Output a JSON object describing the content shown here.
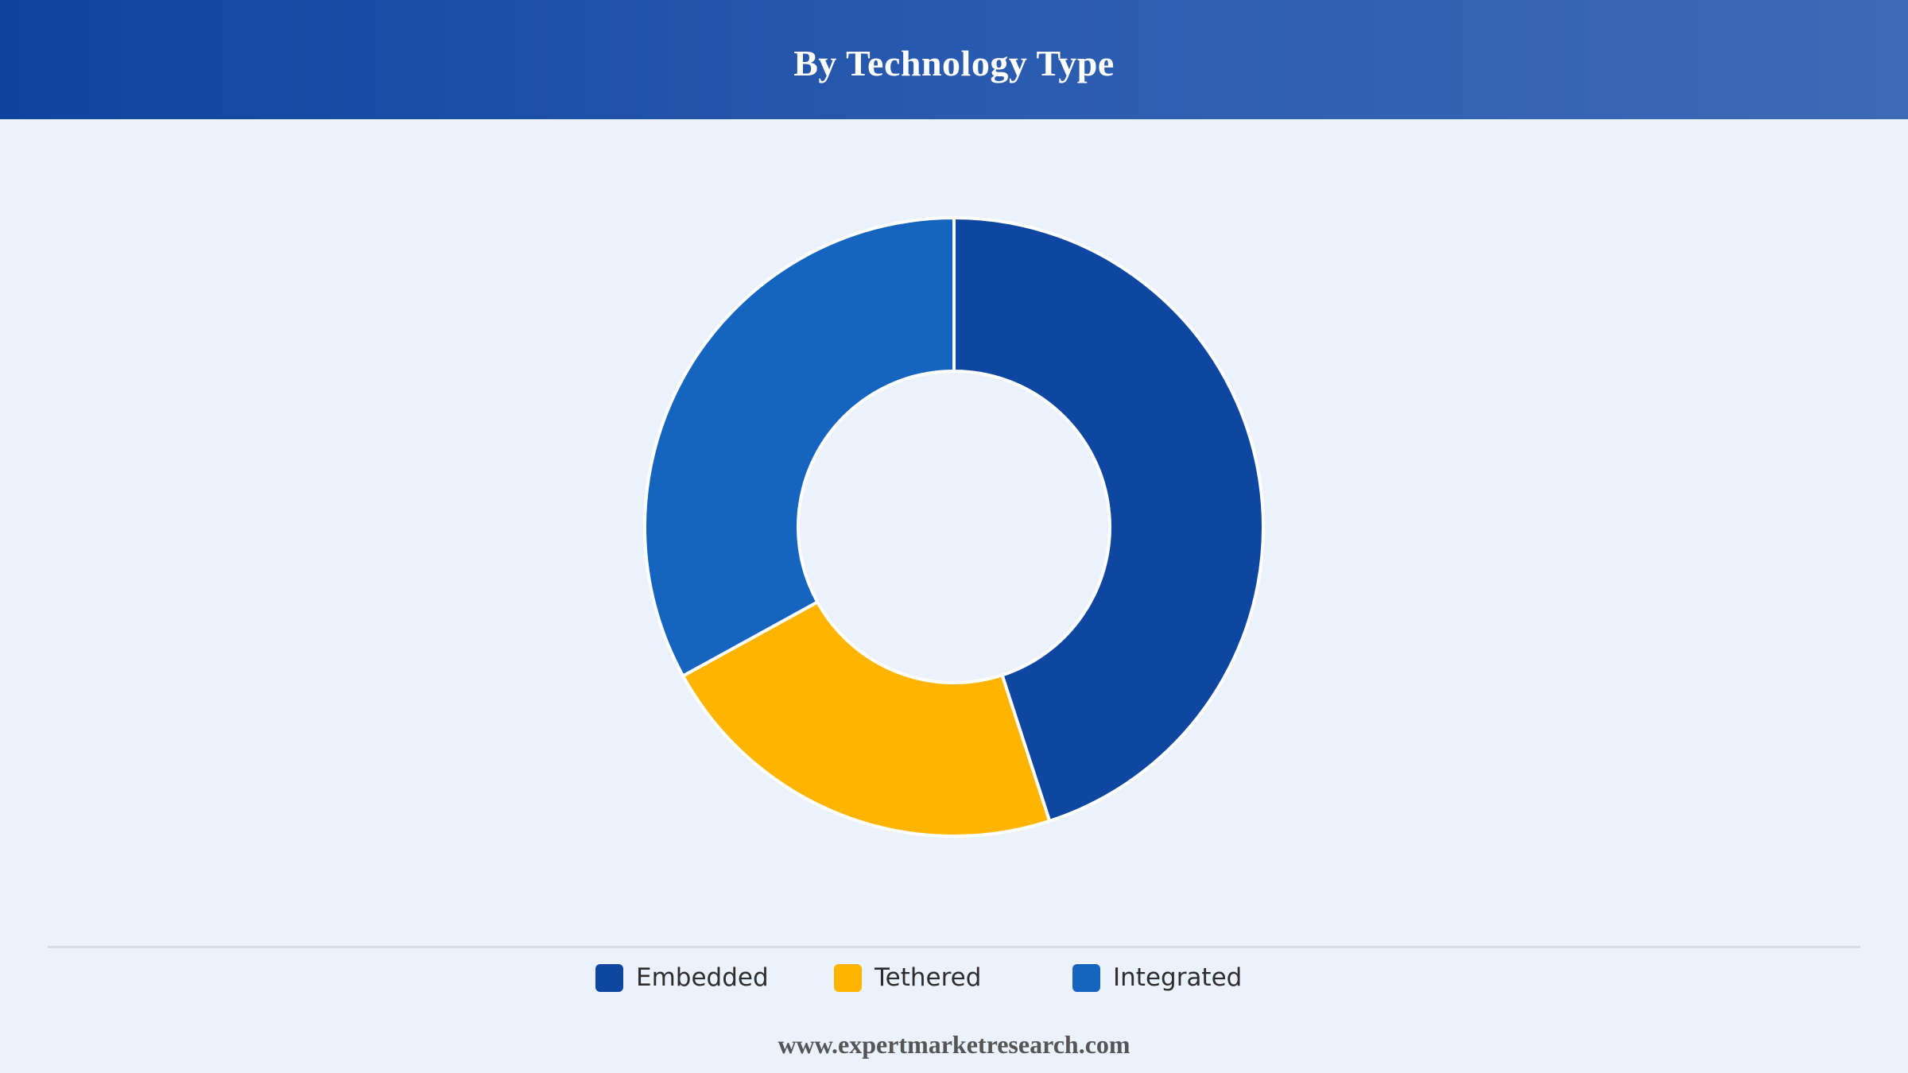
{
  "header": {
    "title": "By Technology Type"
  },
  "chart_data": {
    "type": "pie",
    "donut": true,
    "title": "By Technology Type",
    "categories": [
      "Embedded",
      "Tethered",
      "Integrated"
    ],
    "values": [
      45,
      22,
      33
    ],
    "colors": [
      "#0E46A2",
      "#FFB400",
      "#1565C0"
    ],
    "legend": "bottom",
    "legend_items": [
      {
        "label": "Embedded",
        "color": "#0E46A2"
      },
      {
        "label": "Tethered",
        "color": "#FFB400"
      },
      {
        "label": "Integrated",
        "color": "#1565C0"
      }
    ]
  },
  "colors": {
    "background": "#EBF2FC",
    "header_start": "#0E44A0",
    "header_end": "#3D6AB5",
    "slice_border": "#FFFFFF"
  },
  "footer": {
    "url": "www.expertmarketresearch.com"
  }
}
